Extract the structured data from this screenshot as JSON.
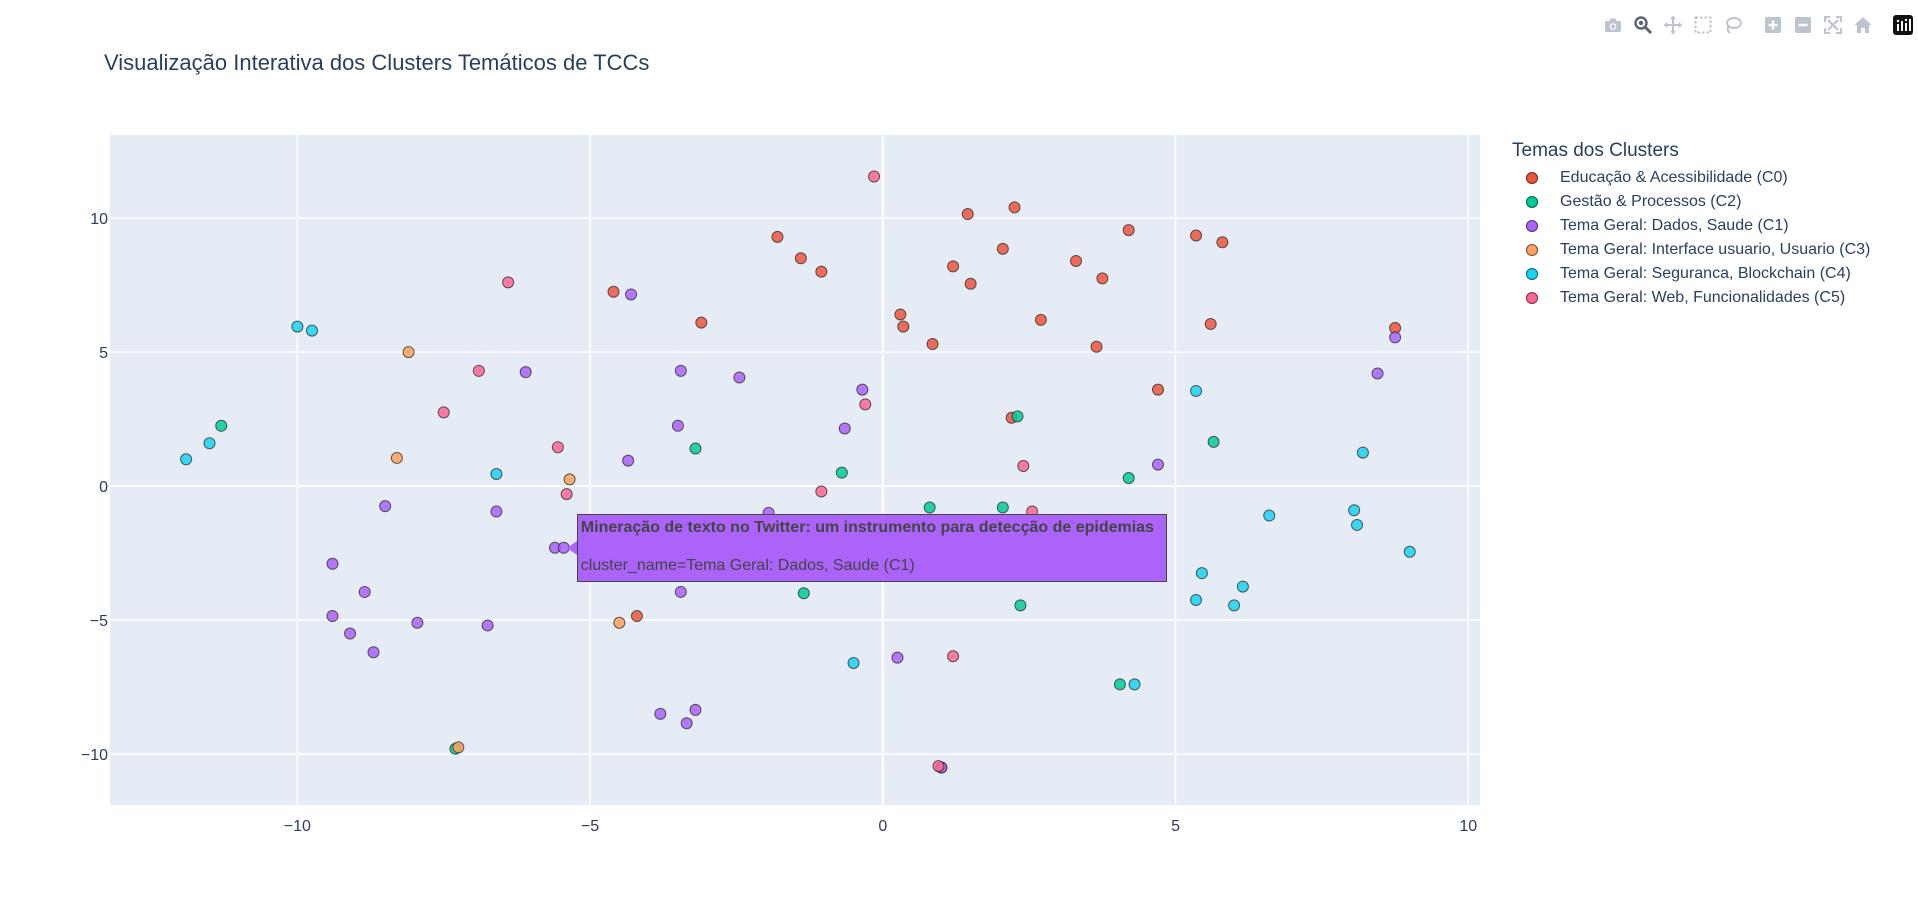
{
  "title": "Visualização Interativa dos Clusters Temáticos de TCCs",
  "modebar": [
    {
      "name": "camera-icon",
      "label": "Download plot as a png"
    },
    {
      "name": "zoom-icon",
      "label": "Zoom"
    },
    {
      "name": "pan-icon",
      "label": "Pan"
    },
    {
      "name": "box-select-icon",
      "label": "Box Select"
    },
    {
      "name": "lasso-icon",
      "label": "Lasso Select"
    },
    {
      "name": "zoom-in-icon",
      "label": "Zoom in"
    },
    {
      "name": "zoom-out-icon",
      "label": "Zoom out"
    },
    {
      "name": "autoscale-icon",
      "label": "Autoscale"
    },
    {
      "name": "reset-axes-icon",
      "label": "Reset axes"
    },
    {
      "name": "plotly-logo-icon",
      "label": "Produced with Plotly"
    }
  ],
  "legend": {
    "title": "Temas dos Clusters"
  },
  "tooltip": {
    "title": "Mineração de texto no Twitter: um instrumento para detecção de epidemias",
    "line": "cluster_name=Tema Geral: Dados, Saude (C1)",
    "color": "#ab63fa",
    "x": -5.5,
    "y": -2.3
  },
  "chart_data": {
    "type": "scatter",
    "title": "Visualização Interativa dos Clusters Temáticos de TCCs",
    "xlabel": "",
    "ylabel": "",
    "xlim": [
      -13.2,
      10.2
    ],
    "ylim": [
      -11.9,
      13.1
    ],
    "xticks": [
      -10,
      -5,
      0,
      5,
      10
    ],
    "yticks": [
      -10,
      -5,
      0,
      5,
      10
    ],
    "xtick_labels": [
      "−10",
      "−5",
      "0",
      "5",
      "10"
    ],
    "ytick_labels": [
      "−10",
      "−5",
      "0",
      "5",
      "10"
    ],
    "grid": true,
    "legend_position": "right",
    "background": "#e5ecf6",
    "series": [
      {
        "name": "Educação & Acessibilidade (C0)",
        "color": "#ef553b",
        "x": [
          -1.8,
          -1.4,
          -1.05,
          -4.6,
          -3.1,
          0.3,
          0.35,
          0.85,
          1.2,
          1.45,
          1.5,
          2.05,
          2.25,
          2.7,
          2.2,
          3.3,
          3.75,
          3.65,
          4.2,
          4.7,
          5.35,
          5.8,
          5.6,
          8.75,
          -4.2,
          1.0
        ],
        "y": [
          9.3,
          8.5,
          8.0,
          7.25,
          6.1,
          6.4,
          5.95,
          5.3,
          8.2,
          10.15,
          7.55,
          8.85,
          10.4,
          6.2,
          2.55,
          8.4,
          7.75,
          5.2,
          9.55,
          3.6,
          9.35,
          9.1,
          6.05,
          5.9,
          -4.85,
          -10.5
        ]
      },
      {
        "name": "Gestão & Processos (C2)",
        "color": "#00cc96",
        "x": [
          -11.3,
          -3.2,
          -0.7,
          0.8,
          2.05,
          2.3,
          4.2,
          5.65,
          -1.35,
          2.35,
          4.05,
          -7.3
        ],
        "y": [
          2.25,
          1.4,
          0.5,
          -0.8,
          -0.8,
          2.6,
          0.3,
          1.65,
          -4.0,
          -4.45,
          -7.4,
          -9.8
        ]
      },
      {
        "name": "Tema Geral: Dados, Saude (C1)",
        "color": "#ab63fa",
        "x": [
          -4.3,
          -3.45,
          -2.45,
          -0.35,
          -0.65,
          -3.5,
          -4.35,
          -6.1,
          -8.5,
          -6.6,
          -9.4,
          -8.85,
          -9.4,
          -9.1,
          -8.7,
          -7.95,
          -6.75,
          -5.6,
          -5.45,
          -3.45,
          -3.8,
          -3.2,
          -3.35,
          0.25,
          1.0,
          4.7,
          8.75,
          8.45,
          -1.95
        ],
        "y": [
          7.15,
          4.3,
          4.05,
          3.6,
          2.15,
          2.25,
          0.95,
          4.25,
          -0.75,
          -0.95,
          -2.9,
          -3.95,
          -4.85,
          -5.5,
          -6.2,
          -5.1,
          -5.2,
          -2.3,
          -2.3,
          -3.95,
          -8.5,
          -8.35,
          -8.85,
          -6.4,
          -10.5,
          0.8,
          5.55,
          4.2,
          -1.0
        ]
      },
      {
        "name": "Tema Geral: Interface usuario, Usuario (C3)",
        "color": "#ffa15a",
        "x": [
          -8.1,
          -8.3,
          -5.35,
          -4.5,
          -7.25
        ],
        "y": [
          5.0,
          1.05,
          0.25,
          -5.1,
          -9.75
        ]
      },
      {
        "name": "Tema Geral: Seguranca, Blockchain (C4)",
        "color": "#19d3f3",
        "x": [
          -10.0,
          -9.75,
          -11.5,
          -11.9,
          -6.6,
          -0.5,
          5.35,
          5.45,
          6.15,
          6.0,
          5.35,
          6.6,
          8.05,
          8.1,
          8.2,
          9.0,
          4.3
        ],
        "y": [
          5.95,
          5.8,
          1.6,
          1.0,
          0.45,
          -6.6,
          3.55,
          -3.25,
          -3.75,
          -4.45,
          -4.25,
          -1.1,
          -0.9,
          -1.45,
          1.25,
          -2.45,
          -7.4
        ]
      },
      {
        "name": "Tema Geral: Web, Funcionalidades (C5)",
        "color": "#ff6692",
        "x": [
          -0.15,
          -6.4,
          -6.9,
          -7.5,
          -5.55,
          -5.4,
          -0.3,
          -1.05,
          2.4,
          2.55,
          1.2,
          0.95
        ],
        "y": [
          11.55,
          7.6,
          4.3,
          2.75,
          1.45,
          -0.3,
          3.05,
          -0.2,
          0.75,
          -0.95,
          -6.35,
          -10.45
        ]
      }
    ]
  }
}
